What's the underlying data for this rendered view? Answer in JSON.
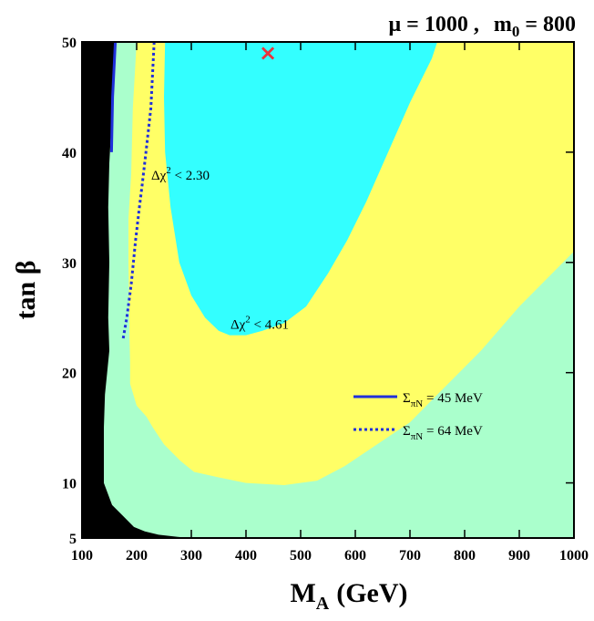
{
  "chart_data": {
    "type": "contour",
    "title": {
      "mu": "μ = 1000 ,",
      "m0_main": "m",
      "m0_sub": "0",
      "m0_value": "= 800"
    },
    "xlabel": {
      "main": "M",
      "sub": "A",
      "unit": "(GeV)"
    },
    "ylabel": "tan β",
    "xlim": [
      100,
      1000
    ],
    "ylim": [
      5,
      50
    ],
    "xticks": [
      100,
      200,
      300,
      400,
      500,
      600,
      700,
      800,
      900,
      1000
    ],
    "yticks": [
      5,
      10,
      20,
      30,
      40,
      50
    ],
    "regions": [
      {
        "name": "excluded",
        "color": "#000000",
        "boundary": [
          [
            162,
            50
          ],
          [
            150,
            39
          ],
          [
            148,
            35
          ],
          [
            150,
            30
          ],
          [
            148,
            25
          ],
          [
            150,
            22
          ],
          [
            146,
            20
          ],
          [
            142,
            18
          ],
          [
            140,
            15
          ],
          [
            140,
            10
          ],
          [
            155,
            8
          ],
          [
            175,
            7
          ],
          [
            195,
            6
          ],
          [
            215,
            5.6
          ],
          [
            240,
            5.3
          ],
          [
            275,
            5.1
          ],
          [
            300,
            5
          ]
        ]
      },
      {
        "name": "delta-chi2-4.61",
        "label_main": "Δχ",
        "label_sup": "2",
        "label_rest": " < 4.61",
        "label_pos": [
          425,
          24
        ],
        "color": "#ffff66",
        "boundary": [
          [
            200,
            50
          ],
          [
            193,
            44
          ],
          [
            190,
            38
          ],
          [
            185,
            34
          ],
          [
            185,
            30
          ],
          [
            186,
            27
          ],
          [
            187,
            23
          ],
          [
            188,
            21
          ],
          [
            188,
            19
          ],
          [
            200,
            17
          ],
          [
            218,
            16
          ],
          [
            230,
            15
          ],
          [
            250,
            13.5
          ],
          [
            280,
            12
          ],
          [
            305,
            11
          ],
          [
            350,
            10.5
          ],
          [
            400,
            10
          ],
          [
            470,
            9.8
          ],
          [
            530,
            10.2
          ],
          [
            580,
            11.5
          ],
          [
            640,
            13.5
          ],
          [
            700,
            15.5
          ],
          [
            750,
            18
          ],
          [
            830,
            22
          ],
          [
            900,
            26
          ],
          [
            960,
            29
          ],
          [
            1000,
            31
          ],
          [
            1000,
            50
          ]
        ]
      },
      {
        "name": "delta-chi2-2.30",
        "label_main": "Δχ",
        "label_sup": "2",
        "label_rest": " < 2.30",
        "label_pos": [
          280,
          37.5
        ],
        "color": "#33ffff",
        "boundary": [
          [
            252,
            50
          ],
          [
            250,
            45
          ],
          [
            252,
            40
          ],
          [
            262,
            35
          ],
          [
            278,
            30
          ],
          [
            300,
            27
          ],
          [
            325,
            25
          ],
          [
            350,
            23.8
          ],
          [
            370,
            23.4
          ],
          [
            400,
            23.4
          ],
          [
            430,
            23.8
          ],
          [
            470,
            24.5
          ],
          [
            510,
            26
          ],
          [
            550,
            29
          ],
          [
            585,
            32
          ],
          [
            620,
            35.5
          ],
          [
            660,
            40
          ],
          [
            700,
            44.5
          ],
          [
            740,
            48.5
          ],
          [
            750,
            50
          ]
        ]
      }
    ],
    "lines": [
      {
        "name": "sigma-45",
        "style": "solid",
        "color": "#1f2fdb",
        "points": [
          [
            161,
            50
          ],
          [
            156,
            45
          ],
          [
            154,
            40
          ]
        ],
        "legend_sigma": "Σ",
        "legend_sub": "πN",
        "legend_rest": " = 45 MeV"
      },
      {
        "name": "sigma-64",
        "style": "dotted",
        "color": "#1f2fdb",
        "points": [
          [
            232,
            50
          ],
          [
            226,
            44
          ],
          [
            217,
            40
          ],
          [
            210,
            37
          ],
          [
            205,
            35
          ],
          [
            198,
            32
          ],
          [
            190,
            28
          ],
          [
            182,
            25
          ],
          [
            175,
            23
          ]
        ],
        "legend_sigma": "Σ",
        "legend_sub": "πN",
        "legend_rest": " = 64 MeV"
      }
    ],
    "marker": {
      "name": "best-fit",
      "symbol": "×",
      "x": 440,
      "y": 49,
      "color": "#e8343c"
    },
    "background_color": "#aaffcc"
  }
}
